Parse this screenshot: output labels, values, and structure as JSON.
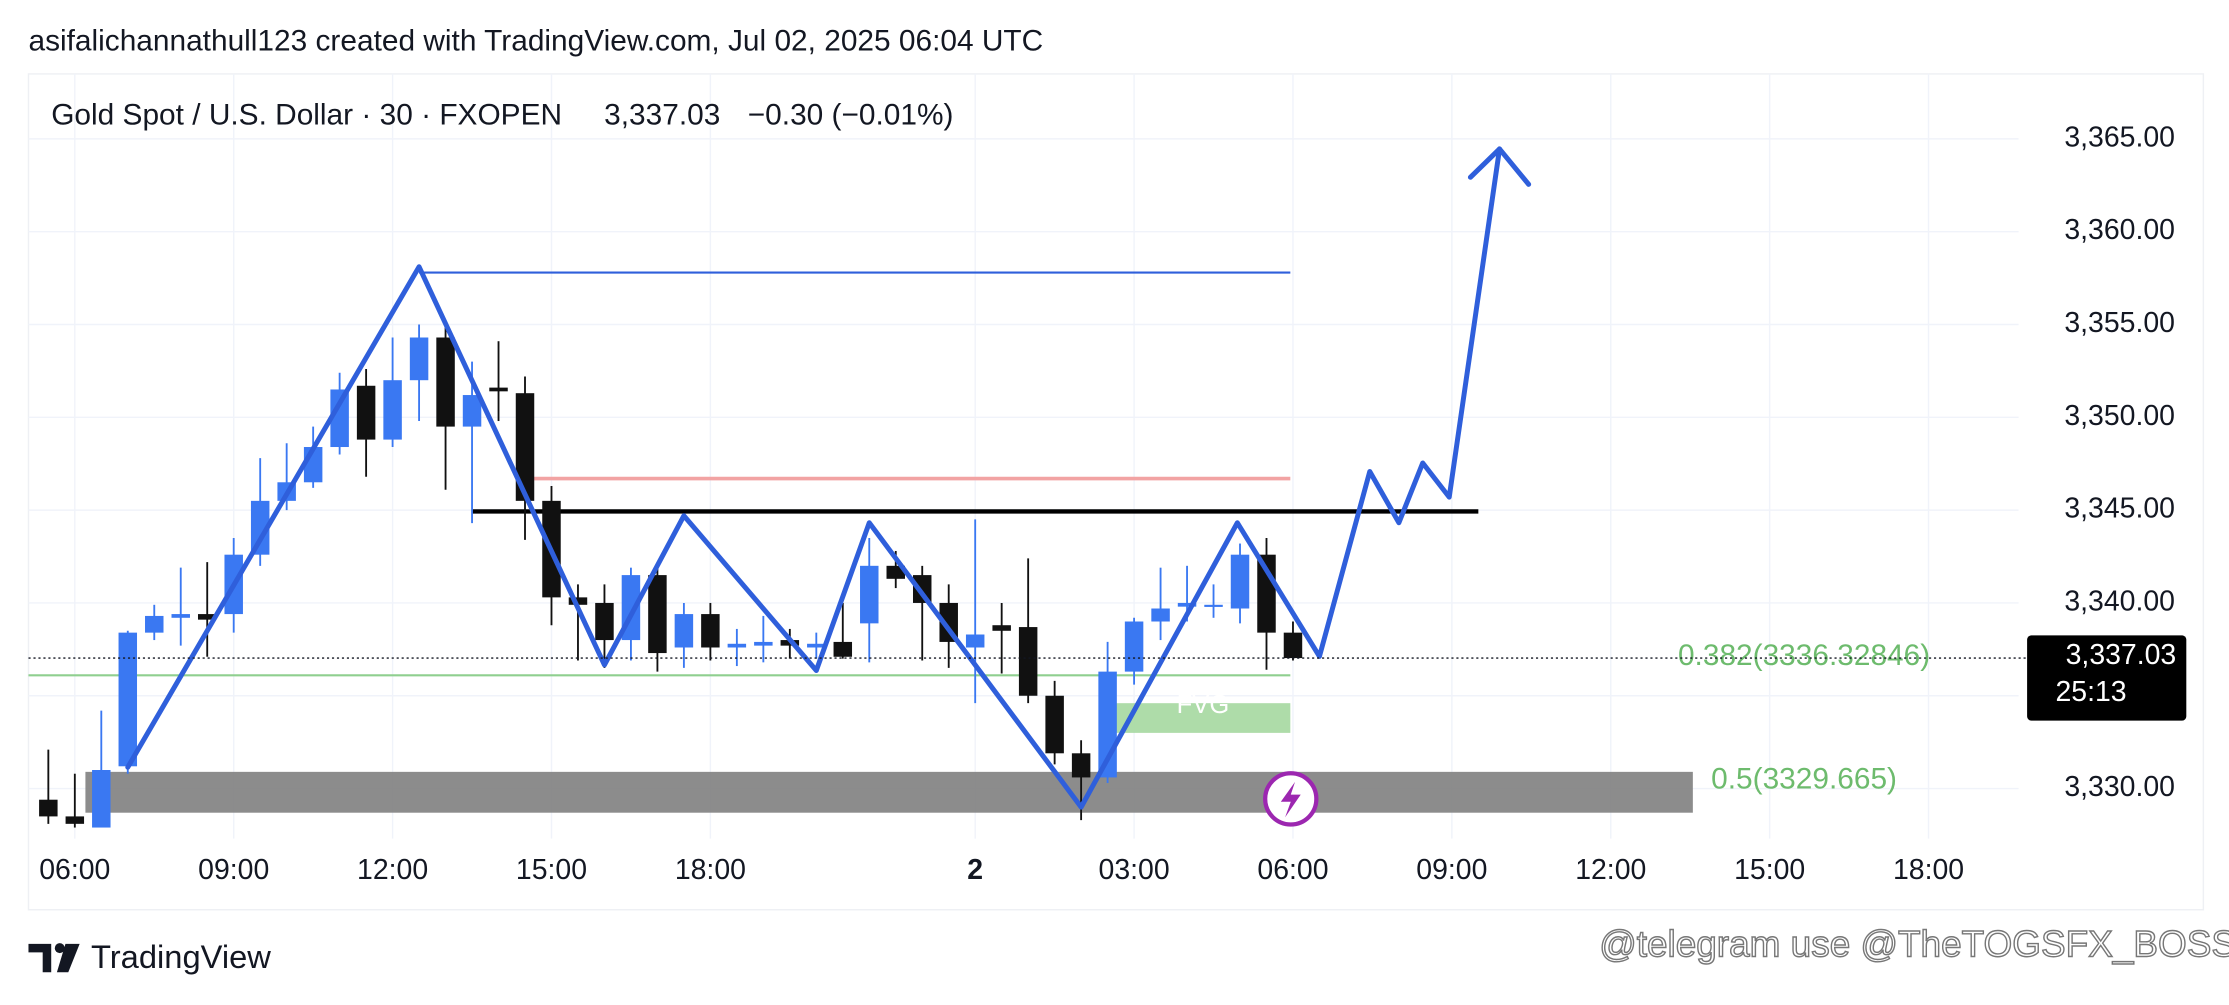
{
  "header": "asifalichannathull123 created with TradingView.com, Jul 02, 2025 06:04 UTC",
  "chart_data": {
    "type": "candlestick",
    "symbol": "Gold Spot / U.S. Dollar · 30 · FXOPEN",
    "last": {
      "value": 3337.03,
      "label": "3,337.03",
      "countdown": "25:13"
    },
    "change_label": "−0.30 (−0.01%)",
    "up_color": "#3a78f2",
    "down_color": "#111111",
    "open": [
      3329.4,
      3328.5,
      3327.9,
      3331.2,
      3338.4,
      3339.2,
      3339.4,
      3339.4,
      3342.6,
      3345.5,
      3346.5,
      3348.4,
      3351.7,
      3348.8,
      3352.0,
      3354.3,
      3349.5,
      3351.6,
      3351.3,
      3345.5,
      3340.3,
      3340.0,
      3338.0,
      3341.5,
      3337.6,
      3339.4,
      3337.6,
      3337.7,
      3338.0,
      3337.6,
      3337.9,
      3338.9,
      3342.0,
      3341.5,
      3340.0,
      3337.6,
      3338.8,
      3338.7,
      3335.0,
      3331.9,
      3330.6,
      3336.3,
      3339.0,
      3339.8,
      3339.8,
      3339.7,
      3342.6,
      3338.4
    ],
    "high": [
      3332.1,
      3330.8,
      3334.2,
      3338.5,
      3339.9,
      3341.9,
      3342.2,
      3343.5,
      3347.8,
      3348.6,
      3349.5,
      3352.4,
      3352.6,
      3354.3,
      3355.0,
      3355.0,
      3353.0,
      3354.1,
      3352.2,
      3346.3,
      3341.0,
      3341.0,
      3341.9,
      3341.9,
      3340.0,
      3340.0,
      3338.6,
      3339.3,
      3338.6,
      3338.4,
      3340.0,
      3343.5,
      3342.8,
      3342.0,
      3341.0,
      3344.5,
      3340.0,
      3342.4,
      3335.8,
      3332.6,
      3337.9,
      3339.2,
      3341.9,
      3342.0,
      3341.0,
      3343.2,
      3343.5,
      3339.0
    ],
    "low": [
      3328.1,
      3327.9,
      3327.9,
      3330.8,
      3338.0,
      3337.7,
      3337.1,
      3338.4,
      3342.0,
      3345.0,
      3346.2,
      3348.0,
      3346.8,
      3348.4,
      3349.8,
      3346.1,
      3344.3,
      3349.8,
      3343.4,
      3338.8,
      3336.9,
      3336.5,
      3336.9,
      3336.3,
      3336.5,
      3336.9,
      3336.6,
      3336.8,
      3337.0,
      3337.0,
      3337.0,
      3336.8,
      3340.8,
      3336.9,
      3336.5,
      3334.6,
      3336.2,
      3334.6,
      3331.3,
      3328.3,
      3330.3,
      3335.6,
      3338.0,
      3339.0,
      3339.2,
      3338.9,
      3336.4,
      3336.9
    ],
    "close": [
      3328.5,
      3328.1,
      3331.0,
      3338.4,
      3339.3,
      3339.4,
      3339.1,
      3342.6,
      3345.5,
      3346.5,
      3348.4,
      3351.5,
      3348.8,
      3352.0,
      3354.3,
      3349.5,
      3351.2,
      3351.4,
      3345.5,
      3340.3,
      3339.9,
      3338.0,
      3341.5,
      3337.3,
      3339.4,
      3337.6,
      3337.8,
      3337.9,
      3337.7,
      3337.8,
      3337.1,
      3342.0,
      3341.3,
      3340.0,
      3337.9,
      3338.3,
      3338.5,
      3335.0,
      3331.9,
      3330.6,
      3336.3,
      3339.0,
      3339.7,
      3340.0,
      3339.9,
      3342.6,
      3338.4,
      3337.03
    ],
    "xlim": [
      -0.75,
      74.4
    ],
    "xticks": [
      {
        "value": 1,
        "label": "06:00"
      },
      {
        "value": 7,
        "label": "09:00"
      },
      {
        "value": 13,
        "label": "12:00"
      },
      {
        "value": 19,
        "label": "15:00"
      },
      {
        "value": 25,
        "label": "18:00"
      },
      {
        "value": 35,
        "label": "2"
      },
      {
        "value": 41,
        "label": "03:00"
      },
      {
        "value": 47,
        "label": "06:00"
      },
      {
        "value": 53,
        "label": "09:00"
      },
      {
        "value": 59,
        "label": "12:00"
      },
      {
        "value": 65,
        "label": "15:00"
      },
      {
        "value": 71,
        "label": "18:00"
      }
    ],
    "ylim": [
      3327.3,
      3368.5
    ],
    "yticks": [
      {
        "value": 3330,
        "label": "3,330.00"
      },
      {
        "value": 3335,
        "label": "3,335.00"
      },
      {
        "value": 3340,
        "label": "3,340.00"
      },
      {
        "value": 3345,
        "label": "3,345.00"
      },
      {
        "value": 3350,
        "label": "3,350.00"
      },
      {
        "value": 3355,
        "label": "3,355.00"
      },
      {
        "value": 3360,
        "label": "3,360.00"
      },
      {
        "value": 3365,
        "label": "3,365.00"
      }
    ],
    "grid": true,
    "drawings": {
      "zigzag": {
        "color": "#2f5fdb",
        "x": [
          3.0,
          14.0,
          21.0,
          24.0,
          29.0,
          31.0,
          39.0,
          44.9,
          48.0,
          49.9,
          51.0,
          51.9,
          52.9,
          54.8
        ],
        "y": [
          3331.15,
          3358.11,
          3336.66,
          3344.7,
          3336.36,
          3344.32,
          3329.0,
          3344.32,
          3337.12,
          3347.08,
          3344.32,
          3347.54,
          3345.7,
          3364.46
        ]
      },
      "arrowhead": {
        "color": "#2f5fdb",
        "x": [
          53.7,
          54.8,
          55.9
        ],
        "y": [
          3362.93,
          3364.46,
          3362.55
        ]
      },
      "hlines": [
        {
          "color": "#2f5fdb",
          "x": [
            14.0,
            46.9
          ],
          "y": 3357.8
        },
        {
          "color": "#000000",
          "x": [
            16.0,
            54.0
          ],
          "y": 3344.93
        },
        {
          "color": "#f2a3a3",
          "x": [
            18.0,
            46.9
          ],
          "y": 3346.7
        },
        {
          "color": "#8fcf8f",
          "x": [
            -0.75,
            46.9
          ],
          "y": 3336.1
        }
      ],
      "boxes": [
        {
          "color": "#a5d8a0",
          "x": [
            40.3,
            46.9
          ],
          "y": [
            3333.0,
            3334.6
          ],
          "label": "FVG"
        },
        {
          "color": "#808080",
          "x": [
            1.4,
            62.1
          ],
          "y": [
            3328.7,
            3330.9
          ]
        }
      ],
      "fib_labels": [
        {
          "text": "0.382(3336.32846)",
          "value": 3336.32846,
          "x": 66.3
        },
        {
          "text": "0.5(3329.665)",
          "value": 3329.665,
          "x": 66.3
        }
      ]
    }
  },
  "footer": {
    "brand": "TradingView",
    "watermark": "@telegram use @TheTOGSFX_BOSS"
  }
}
